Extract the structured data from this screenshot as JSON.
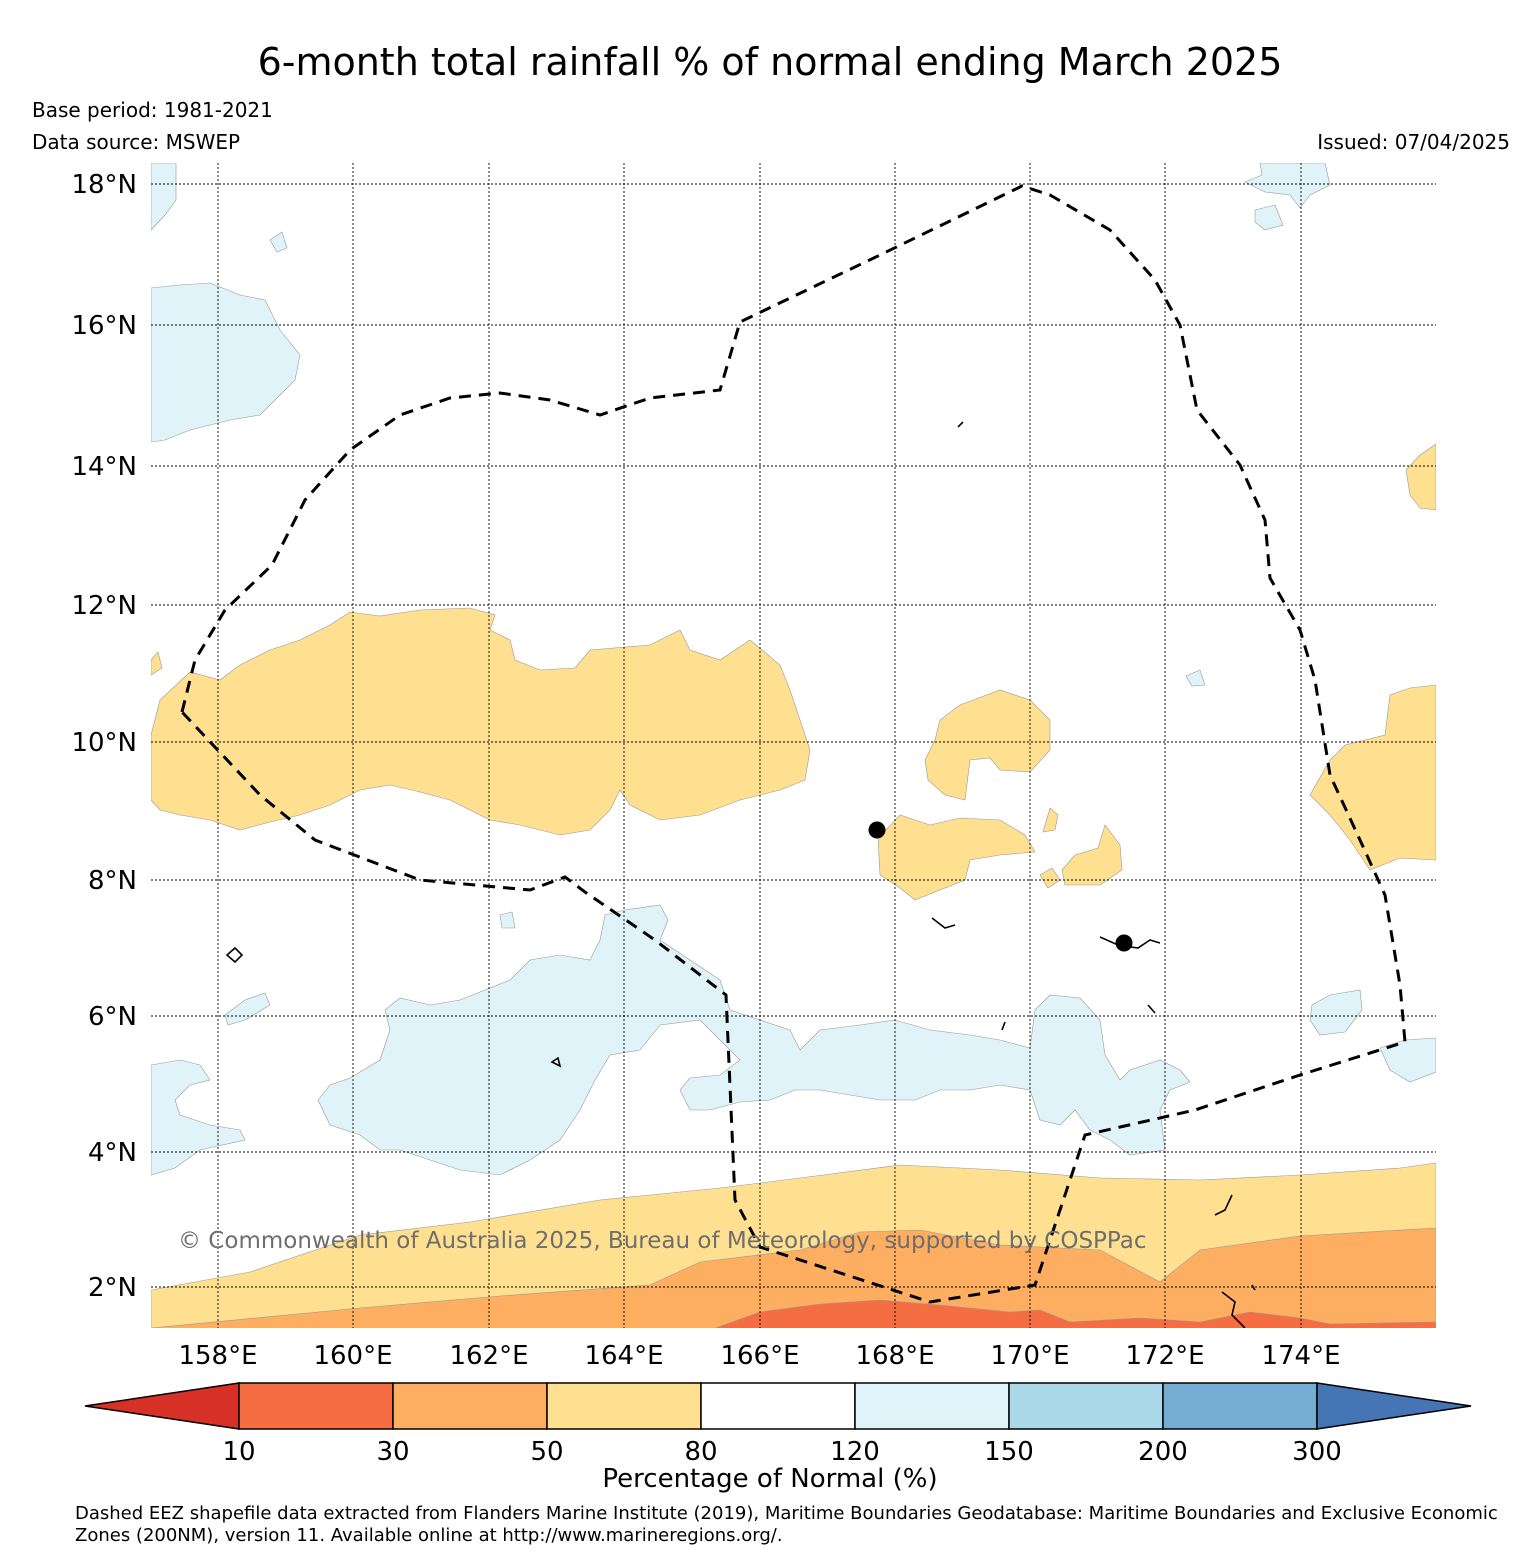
{
  "title": "6-month total rainfall % of normal ending March 2025",
  "base_period": "Base period: 1981-2021",
  "data_source": "Data source: MSWEP",
  "issued": "Issued: 07/04/2025",
  "copyright": "© Commonwealth of Australia 2025, Bureau of Meteorology, supported by COSPPac",
  "lat_labels": [
    "18°N",
    "16°N",
    "14°N",
    "12°N",
    "10°N",
    "8°N",
    "6°N",
    "4°N",
    "2°N"
  ],
  "lon_labels": [
    "158°E",
    "160°E",
    "162°E",
    "164°E",
    "166°E",
    "168°E",
    "170°E",
    "172°E",
    "174°E"
  ],
  "colorbar": {
    "title": "Percentage of Normal (%)",
    "ticks": [
      "10",
      "30",
      "50",
      "80",
      "120",
      "150",
      "200",
      "300"
    ],
    "colors": [
      "#d73027",
      "#f46d43",
      "#fdae61",
      "#fee090",
      "#ffffff",
      "#e0f3f8",
      "#abd9e9",
      "#74add1",
      "#4575b4"
    ]
  },
  "footnote": "Dashed EEZ shapefile data extracted from Flanders Marine Institute (2019), Maritime Boundaries Geodatabase: Maritime Boundaries and Exclusive Economic Zones (200NM), version 11. Available online at http://www.marineregions.org/."
}
